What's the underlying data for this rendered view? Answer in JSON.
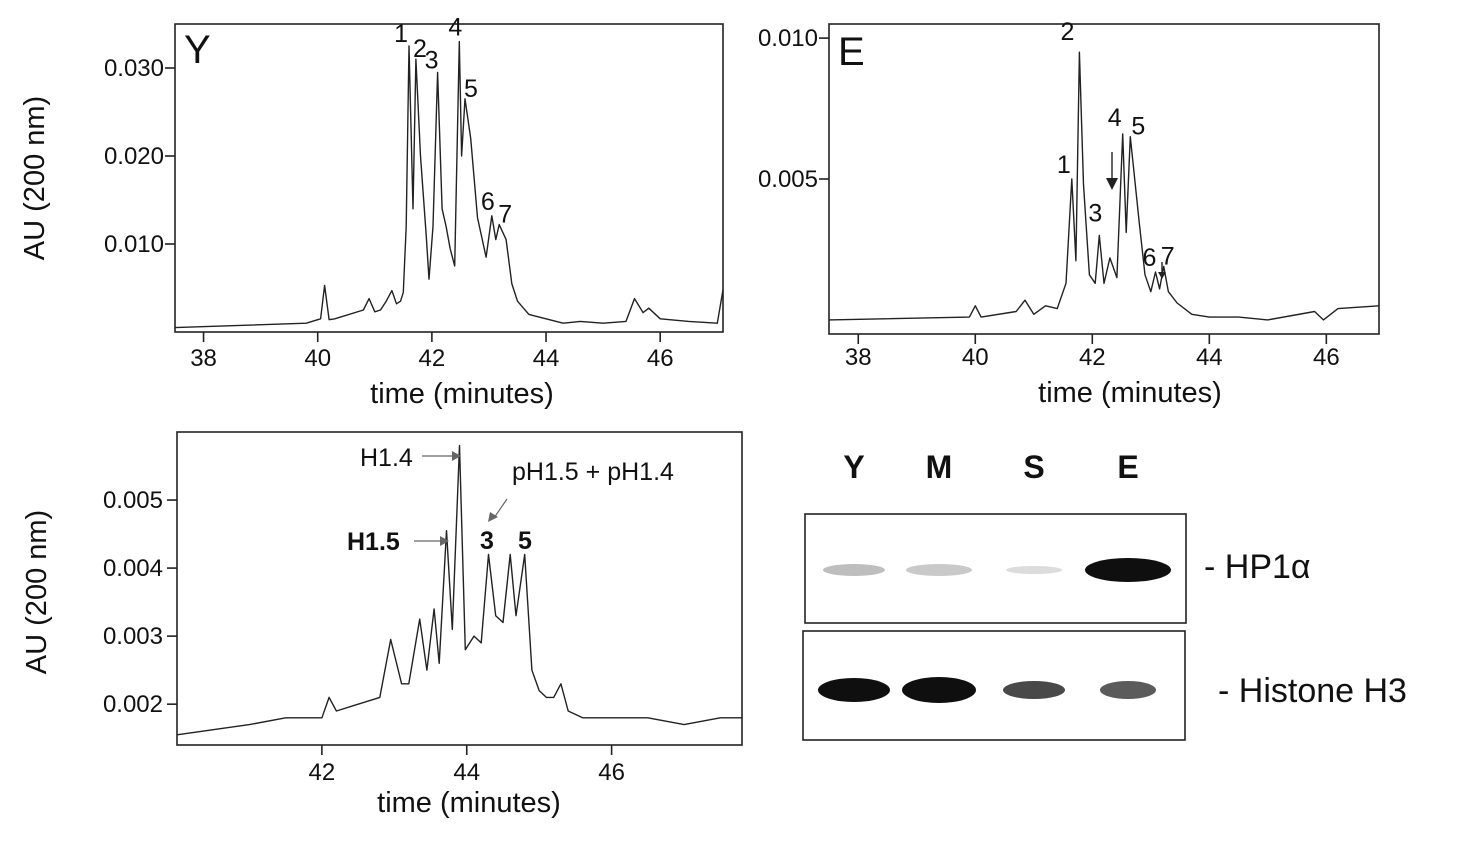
{
  "chart_data": [
    {
      "type": "line",
      "panel_label": "Y",
      "title": "",
      "xlabel": "time (minutes)",
      "ylabel": "AU (200 nm)",
      "xlim": [
        37.5,
        47.1
      ],
      "ylim": [
        0,
        0.035
      ],
      "xticks": [
        38,
        40,
        42,
        44,
        46
      ],
      "yticks": [
        0.01,
        0.02,
        0.03
      ],
      "ytick_labels": [
        "0.010",
        "0.020",
        "0.030"
      ],
      "x": [
        37.5,
        39.8,
        40.05,
        40.12,
        40.2,
        40.3,
        40.8,
        40.9,
        41.0,
        41.1,
        41.2,
        41.3,
        41.38,
        41.45,
        41.5,
        41.55,
        41.6,
        41.67,
        41.72,
        41.8,
        41.9,
        41.95,
        42.02,
        42.1,
        42.18,
        42.25,
        42.32,
        42.4,
        42.48,
        42.52,
        42.58,
        42.68,
        42.8,
        42.95,
        43.05,
        43.12,
        43.18,
        43.3,
        43.4,
        43.5,
        43.7,
        44.0,
        44.3,
        44.6,
        45.0,
        45.4,
        45.55,
        45.7,
        45.8,
        46.0,
        46.5,
        47.0,
        47.1
      ],
      "values": [
        0.0005,
        0.001,
        0.0015,
        0.0053,
        0.0014,
        0.0015,
        0.0025,
        0.0038,
        0.0023,
        0.0025,
        0.0035,
        0.0047,
        0.0032,
        0.0035,
        0.0045,
        0.012,
        0.0325,
        0.014,
        0.031,
        0.02,
        0.011,
        0.006,
        0.012,
        0.0295,
        0.014,
        0.012,
        0.0095,
        0.0075,
        0.033,
        0.02,
        0.0265,
        0.022,
        0.013,
        0.0085,
        0.0132,
        0.0105,
        0.0122,
        0.0105,
        0.0055,
        0.0035,
        0.002,
        0.0015,
        0.001,
        0.0012,
        0.001,
        0.0012,
        0.0038,
        0.0022,
        0.0027,
        0.0015,
        0.0012,
        0.001,
        0.0048
      ],
      "peak_labels": [
        {
          "text": "1",
          "x": 41.6,
          "y": 0.0325
        },
        {
          "text": "2",
          "x": 41.72,
          "y": 0.031
        },
        {
          "text": "3",
          "x": 42.1,
          "y": 0.0295
        },
        {
          "text": "4",
          "x": 42.48,
          "y": 0.033
        },
        {
          "text": "5",
          "x": 42.58,
          "y": 0.0265
        },
        {
          "text": "6",
          "x": 43.05,
          "y": 0.0132
        },
        {
          "text": "7",
          "x": 43.18,
          "y": 0.0122
        }
      ]
    },
    {
      "type": "line",
      "panel_label": "E",
      "title": "",
      "xlabel": "time (minutes)",
      "ylabel": "",
      "xlim": [
        37.5,
        46.9
      ],
      "ylim": [
        -0.0005,
        0.0105
      ],
      "xticks": [
        38,
        40,
        42,
        44,
        46
      ],
      "yticks": [
        0.005,
        0.01
      ],
      "ytick_labels": [
        "0.005",
        "0.010"
      ],
      "x": [
        37.5,
        39.9,
        40.0,
        40.1,
        40.7,
        40.85,
        41.0,
        41.2,
        41.4,
        41.55,
        41.65,
        41.72,
        41.78,
        41.85,
        41.95,
        42.05,
        42.12,
        42.2,
        42.3,
        42.42,
        42.52,
        42.58,
        42.65,
        42.8,
        42.9,
        43.0,
        43.08,
        43.15,
        43.22,
        43.3,
        43.45,
        43.7,
        44.0,
        44.5,
        45.0,
        45.8,
        45.95,
        46.2,
        46.9
      ],
      "values": [
        0.0,
        0.0001,
        0.0005,
        0.0001,
        0.0003,
        0.0007,
        0.0002,
        0.0005,
        0.0004,
        0.0013,
        0.005,
        0.0021,
        0.0095,
        0.0048,
        0.0016,
        0.0013,
        0.003,
        0.0013,
        0.0022,
        0.0015,
        0.0066,
        0.0031,
        0.0065,
        0.0035,
        0.0016,
        0.001,
        0.0017,
        0.0011,
        0.0019,
        0.001,
        0.0006,
        0.0002,
        0.0001,
        0.0001,
        0.0,
        0.0003,
        0.0,
        0.0004,
        0.0005
      ],
      "peak_labels": [
        {
          "text": "1",
          "x": 41.65,
          "y": 0.005
        },
        {
          "text": "2",
          "x": 41.78,
          "y": 0.0095
        },
        {
          "text": "3",
          "x": 42.12,
          "y": 0.003
        },
        {
          "text": "4",
          "x": 42.52,
          "y": 0.0066
        },
        {
          "text": "5",
          "x": 42.65,
          "y": 0.0065
        },
        {
          "text": "6",
          "x": 43.08,
          "y": 0.0017
        },
        {
          "text": "7",
          "x": 43.22,
          "y": 0.0019
        }
      ]
    },
    {
      "type": "line",
      "panel_label": "",
      "title": "",
      "xlabel": "time (minutes)",
      "ylabel": "AU (200 nm)",
      "xlim": [
        40.0,
        47.8
      ],
      "ylim": [
        0.0014,
        0.006
      ],
      "xticks": [
        42,
        44,
        46
      ],
      "yticks": [
        0.002,
        0.003,
        0.004,
        0.005
      ],
      "ytick_labels": [
        "0.002",
        "0.003",
        "0.004",
        "0.005"
      ],
      "x": [
        40.0,
        41.0,
        41.5,
        42.0,
        42.1,
        42.2,
        42.5,
        42.8,
        42.95,
        43.1,
        43.2,
        43.35,
        43.45,
        43.55,
        43.62,
        43.72,
        43.8,
        43.9,
        43.98,
        44.1,
        44.2,
        44.3,
        44.4,
        44.5,
        44.6,
        44.68,
        44.8,
        44.9,
        45.0,
        45.1,
        45.2,
        45.3,
        45.4,
        45.6,
        46.0,
        46.5,
        47.0,
        47.5,
        47.8
      ],
      "values": [
        0.00155,
        0.0017,
        0.0018,
        0.0018,
        0.0021,
        0.0019,
        0.002,
        0.0021,
        0.00295,
        0.0023,
        0.0023,
        0.00325,
        0.0025,
        0.0034,
        0.0026,
        0.00455,
        0.0031,
        0.0058,
        0.0028,
        0.003,
        0.0029,
        0.0042,
        0.0033,
        0.0032,
        0.0042,
        0.0033,
        0.0042,
        0.0025,
        0.0022,
        0.0021,
        0.0021,
        0.0023,
        0.0019,
        0.0018,
        0.0018,
        0.0018,
        0.0017,
        0.0018,
        0.0018
      ],
      "peak_labels": [
        {
          "text": "H1.4",
          "x": 43.9,
          "y": 0.0058,
          "arrow": true
        },
        {
          "text": "H1.5",
          "x": 43.72,
          "y": 0.00455,
          "arrow": true
        },
        {
          "text": "3",
          "x": 44.3,
          "y": 0.0042
        },
        {
          "text": "5",
          "x": 44.8,
          "y": 0.0042
        }
      ],
      "annotation": "pH1.5 + pH1.4"
    }
  ],
  "western_blot": {
    "lanes": [
      "Y",
      "M",
      "S",
      "E"
    ],
    "bands": [
      {
        "label": "- HP1α",
        "intensity": [
          0.45,
          0.4,
          0.2,
          1.0
        ]
      },
      {
        "label": "- Histone H3",
        "intensity": [
          1.0,
          1.0,
          0.85,
          0.8
        ]
      }
    ]
  },
  "e_panel_arrow_label": ""
}
